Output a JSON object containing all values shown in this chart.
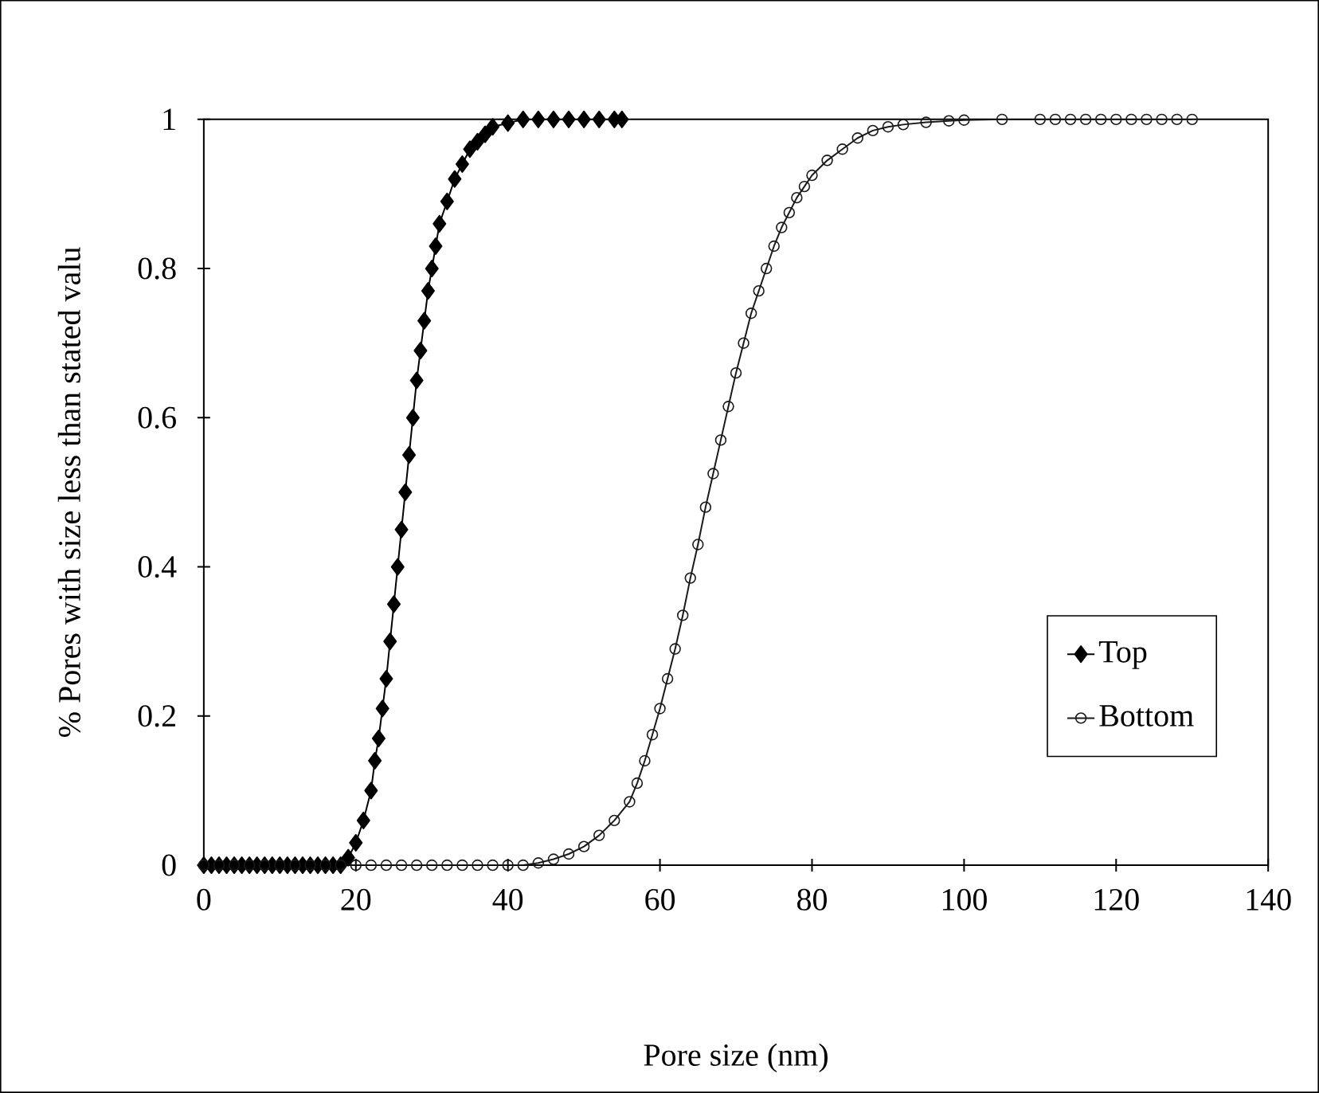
{
  "chart_data": {
    "type": "line",
    "xlabel": "Pore size (nm)",
    "ylabel": "% Pores with size less than stated valu",
    "xlim": [
      0,
      140
    ],
    "xticks": [
      0,
      20,
      40,
      60,
      80,
      100,
      120,
      140
    ],
    "ylim": [
      0,
      1
    ],
    "yticks": [
      0,
      0.2,
      0.4,
      0.6,
      0.8,
      1
    ],
    "grid": false,
    "legend": "bottom right",
    "series": [
      {
        "name": "Top",
        "color": "#000000",
        "marker": "diamond",
        "x": [
          0,
          1,
          2,
          3,
          4,
          5,
          6,
          7,
          8,
          9,
          10,
          11,
          12,
          13,
          14,
          15,
          16,
          17,
          18,
          19,
          20,
          21,
          22,
          22.5,
          23,
          23.5,
          24,
          24.5,
          25,
          25.5,
          26,
          26.5,
          27,
          27.5,
          28,
          28.5,
          29,
          29.5,
          30,
          30.5,
          31,
          32,
          33,
          34,
          35,
          36,
          37,
          38,
          40,
          42,
          44,
          46,
          48,
          50,
          52,
          54,
          55
        ],
        "values": [
          0,
          0,
          0,
          0,
          0,
          0,
          0,
          0,
          0,
          0,
          0,
          0,
          0,
          0,
          0,
          0,
          0,
          0,
          0,
          0.01,
          0.03,
          0.06,
          0.1,
          0.14,
          0.17,
          0.21,
          0.25,
          0.3,
          0.35,
          0.4,
          0.45,
          0.5,
          0.55,
          0.6,
          0.65,
          0.69,
          0.73,
          0.77,
          0.8,
          0.83,
          0.86,
          0.89,
          0.92,
          0.94,
          0.96,
          0.97,
          0.98,
          0.99,
          0.995,
          1,
          1,
          1,
          1,
          1,
          1,
          1,
          1
        ]
      },
      {
        "name": "Bottom",
        "color": "#1a1a1a",
        "marker": "circle",
        "x": [
          0,
          2,
          4,
          6,
          8,
          10,
          12,
          14,
          16,
          18,
          20,
          22,
          24,
          26,
          28,
          30,
          32,
          34,
          36,
          38,
          40,
          42,
          44,
          46,
          48,
          50,
          52,
          54,
          56,
          57,
          58,
          59,
          60,
          61,
          62,
          63,
          64,
          65,
          66,
          67,
          68,
          69,
          70,
          71,
          72,
          73,
          74,
          75,
          76,
          77,
          78,
          79,
          80,
          82,
          84,
          86,
          88,
          90,
          92,
          95,
          98,
          100,
          105,
          110,
          112,
          114,
          116,
          118,
          120,
          122,
          124,
          126,
          128,
          130
        ],
        "values": [
          0,
          0,
          0,
          0,
          0,
          0,
          0,
          0,
          0,
          0,
          0,
          0,
          0,
          0,
          0,
          0,
          0,
          0,
          0,
          0,
          0,
          0,
          0.003,
          0.008,
          0.015,
          0.025,
          0.04,
          0.06,
          0.085,
          0.11,
          0.14,
          0.175,
          0.21,
          0.25,
          0.29,
          0.335,
          0.385,
          0.43,
          0.48,
          0.525,
          0.57,
          0.615,
          0.66,
          0.7,
          0.74,
          0.77,
          0.8,
          0.83,
          0.855,
          0.875,
          0.895,
          0.91,
          0.925,
          0.945,
          0.96,
          0.975,
          0.985,
          0.99,
          0.993,
          0.996,
          0.998,
          0.999,
          1,
          1,
          1,
          1,
          1,
          1,
          1,
          1,
          1,
          1,
          1,
          1
        ]
      }
    ]
  }
}
